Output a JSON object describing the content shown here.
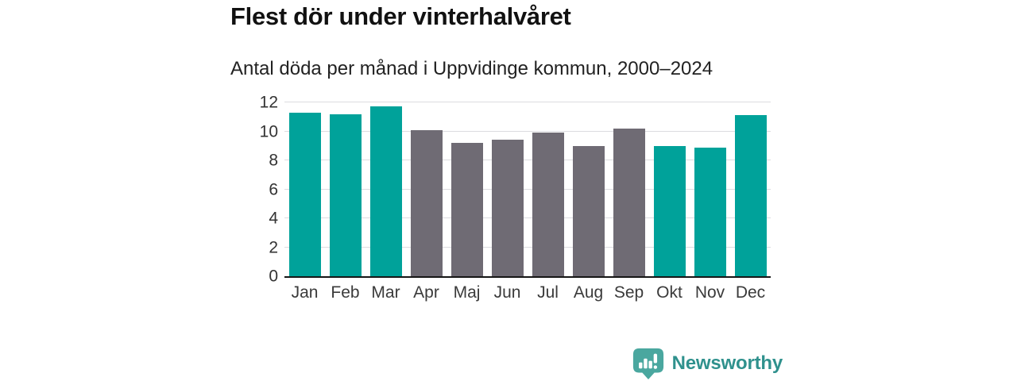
{
  "chart_data": {
    "type": "bar",
    "title": "Flest dör under vinterhalvåret",
    "subtitle": "Antal döda per månad i Uppvidinge kommun, 2000–2024",
    "categories": [
      "Jan",
      "Feb",
      "Mar",
      "Apr",
      "Maj",
      "Jun",
      "Jul",
      "Aug",
      "Sep",
      "Okt",
      "Nov",
      "Dec"
    ],
    "values": [
      11.3,
      11.2,
      11.7,
      10.1,
      9.2,
      9.4,
      9.9,
      9.0,
      10.2,
      9.0,
      8.9,
      11.1
    ],
    "bar_colors": [
      "teal",
      "teal",
      "teal",
      "gray",
      "gray",
      "gray",
      "gray",
      "gray",
      "gray",
      "teal",
      "teal",
      "teal"
    ],
    "colors": {
      "teal": "#00a29a",
      "gray": "#6f6b74"
    },
    "xlabel": "",
    "ylabel": "",
    "ylim": [
      0,
      12
    ],
    "yticks": [
      0,
      2,
      4,
      6,
      8,
      10,
      12
    ],
    "grid": "horizontal",
    "legend": "none",
    "gridline_color": "#dcdce0",
    "axis_color": "#161616"
  },
  "footer": {
    "brand": "Newsworthy",
    "brand_color": "#2f918d",
    "logo_icon": "newsworthy-speech-bubble-barchart-icon",
    "logo_icon_color": "#4aa79f"
  }
}
